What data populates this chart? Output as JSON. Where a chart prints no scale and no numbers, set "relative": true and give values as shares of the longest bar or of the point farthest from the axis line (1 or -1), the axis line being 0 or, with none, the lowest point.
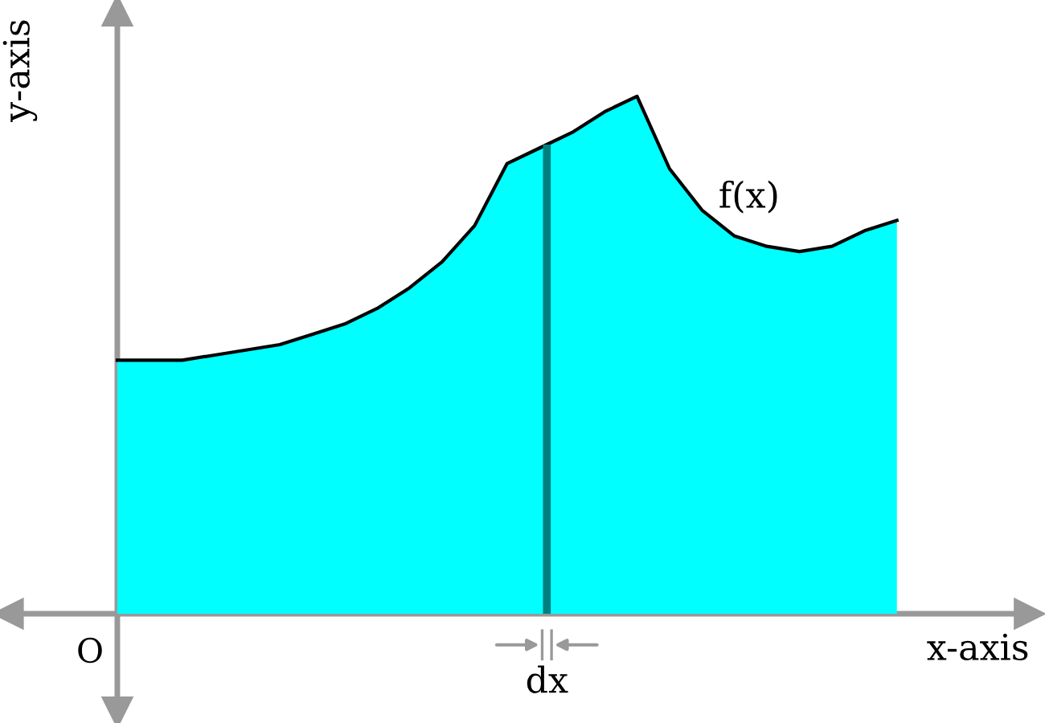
{
  "chart_data": {
    "type": "area",
    "relative": true,
    "xlabel": "x-axis",
    "ylabel": "y-axis",
    "annotations": [
      "O",
      "dx"
    ],
    "categories": [
      null,
      null,
      null,
      null,
      null,
      null,
      null,
      null,
      null,
      null,
      null,
      null,
      null,
      null,
      null,
      null,
      null,
      null,
      null,
      null,
      null,
      null,
      null,
      null,
      null
    ],
    "series": [
      {
        "name": "f(x)",
        "color": "#00ffff",
        "values": [
          0.49,
          0.49,
          0.49,
          0.5,
          0.51,
          0.52,
          0.54,
          0.56,
          0.59,
          0.63,
          0.68,
          0.75,
          0.87,
          0.9,
          0.93,
          0.97,
          1,
          0.86,
          0.78,
          0.73,
          0.71,
          0.7,
          0.71,
          0.74,
          0.76
        ]
      }
    ]
  }
}
